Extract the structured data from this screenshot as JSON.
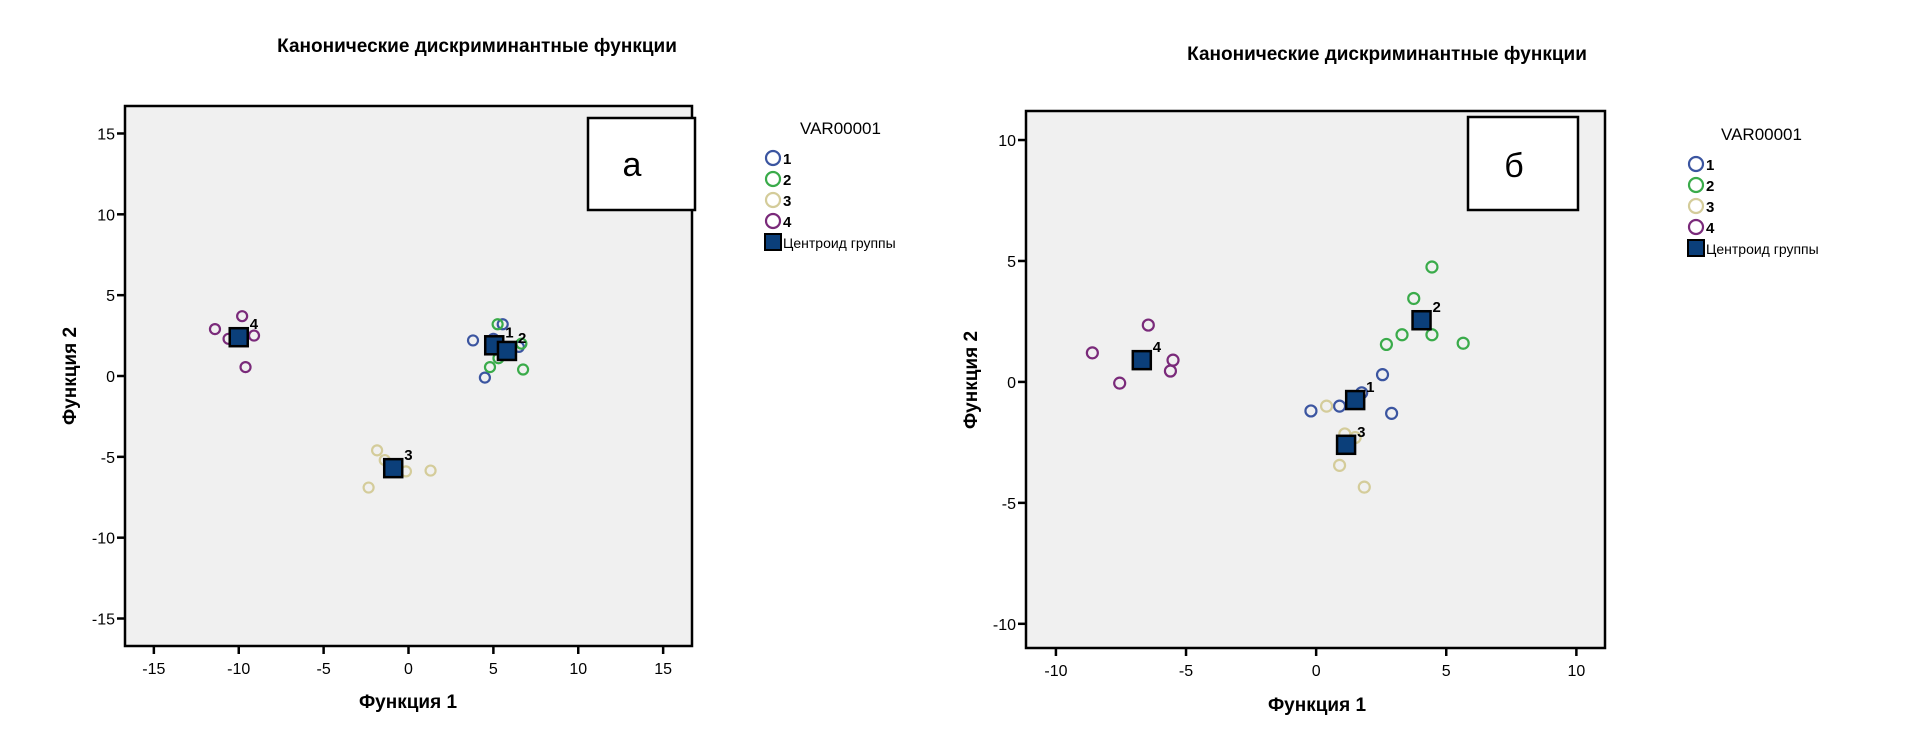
{
  "colors": {
    "group1": "#3b55a0",
    "group2": "#3aab4a",
    "group3": "#d4cc9a",
    "group4": "#7a2a7a",
    "centroid": "#0b3f7a",
    "plot_bg": "#f0f0f0"
  },
  "chart_data": [
    {
      "type": "scatter",
      "title": "Канонические дискриминантные функции",
      "panel_label": "а",
      "xlabel": "Функция 1",
      "ylabel": "Функция 2",
      "xlim": [
        -16.7,
        16.7
      ],
      "ylim": [
        -16.7,
        16.7
      ],
      "xticks": [
        -15,
        -10,
        -5,
        0,
        5,
        10,
        15
      ],
      "yticks": [
        -15,
        -10,
        -5,
        0,
        5,
        10,
        15
      ],
      "grid": false,
      "legend": {
        "title": "VAR00001",
        "placement": "right",
        "entries": [
          "1",
          "2",
          "3",
          "4",
          "Центроид группы"
        ]
      },
      "series": [
        {
          "name": "1",
          "points": [
            [
              3.8,
              2.2
            ],
            [
              5.55,
              3.2
            ],
            [
              5.0,
              2.3
            ],
            [
              4.5,
              -0.1
            ],
            [
              6.5,
              1.8
            ]
          ]
        },
        {
          "name": "2",
          "points": [
            [
              5.25,
              3.2
            ],
            [
              4.8,
              0.55
            ],
            [
              6.75,
              0.4
            ],
            [
              6.65,
              2.0
            ],
            [
              5.3,
              1.1
            ]
          ]
        },
        {
          "name": "3",
          "points": [
            [
              -1.85,
              -4.6
            ],
            [
              -1.4,
              -5.2
            ],
            [
              -0.15,
              -5.9
            ],
            [
              1.3,
              -5.85
            ],
            [
              -2.35,
              -6.9
            ]
          ]
        },
        {
          "name": "4",
          "points": [
            [
              -11.4,
              2.9
            ],
            [
              -9.8,
              3.7
            ],
            [
              -10.6,
              2.3
            ],
            [
              -9.1,
              2.5
            ],
            [
              -9.6,
              0.55
            ]
          ]
        }
      ],
      "centroids": [
        {
          "label": "1",
          "x": 5.05,
          "y": 1.9
        },
        {
          "label": "2",
          "x": 5.8,
          "y": 1.55
        },
        {
          "label": "3",
          "x": -0.9,
          "y": -5.7
        },
        {
          "label": "4",
          "x": -10.0,
          "y": 2.4
        }
      ]
    },
    {
      "type": "scatter",
      "title": "Канонические дискриминантные функции",
      "panel_label": "б",
      "xlabel": "Функция 1",
      "ylabel": "Функция 2",
      "xlim": [
        -11.15,
        11.1
      ],
      "ylim": [
        -11.0,
        11.2
      ],
      "xticks": [
        -10,
        -5,
        0,
        5,
        10
      ],
      "yticks": [
        -10,
        -5,
        0,
        5,
        10
      ],
      "grid": false,
      "legend": {
        "title": "VAR00001",
        "placement": "right",
        "entries": [
          "1",
          "2",
          "3",
          "4",
          "Центроид группы"
        ]
      },
      "series": [
        {
          "name": "1",
          "points": [
            [
              -0.2,
              -1.2
            ],
            [
              0.9,
              -1.0
            ],
            [
              1.75,
              -0.45
            ],
            [
              2.55,
              0.3
            ],
            [
              2.9,
              -1.3
            ]
          ]
        },
        {
          "name": "2",
          "points": [
            [
              4.45,
              4.75
            ],
            [
              3.75,
              3.45
            ],
            [
              3.3,
              1.95
            ],
            [
              2.7,
              1.55
            ],
            [
              4.45,
              1.95
            ],
            [
              5.65,
              1.6
            ]
          ]
        },
        {
          "name": "3",
          "points": [
            [
              0.4,
              -1.0
            ],
            [
              1.1,
              -2.15
            ],
            [
              1.5,
              -2.3
            ],
            [
              0.9,
              -3.45
            ],
            [
              1.85,
              -4.35
            ]
          ]
        },
        {
          "name": "4",
          "points": [
            [
              -8.6,
              1.2
            ],
            [
              -6.45,
              2.35
            ],
            [
              -5.5,
              0.9
            ],
            [
              -5.6,
              0.45
            ],
            [
              -7.55,
              -0.05
            ]
          ]
        }
      ],
      "centroids": [
        {
          "label": "1",
          "x": 1.5,
          "y": -0.75
        },
        {
          "label": "2",
          "x": 4.05,
          "y": 2.55
        },
        {
          "label": "3",
          "x": 1.15,
          "y": -2.6
        },
        {
          "label": "4",
          "x": -6.7,
          "y": 0.9
        }
      ]
    }
  ]
}
